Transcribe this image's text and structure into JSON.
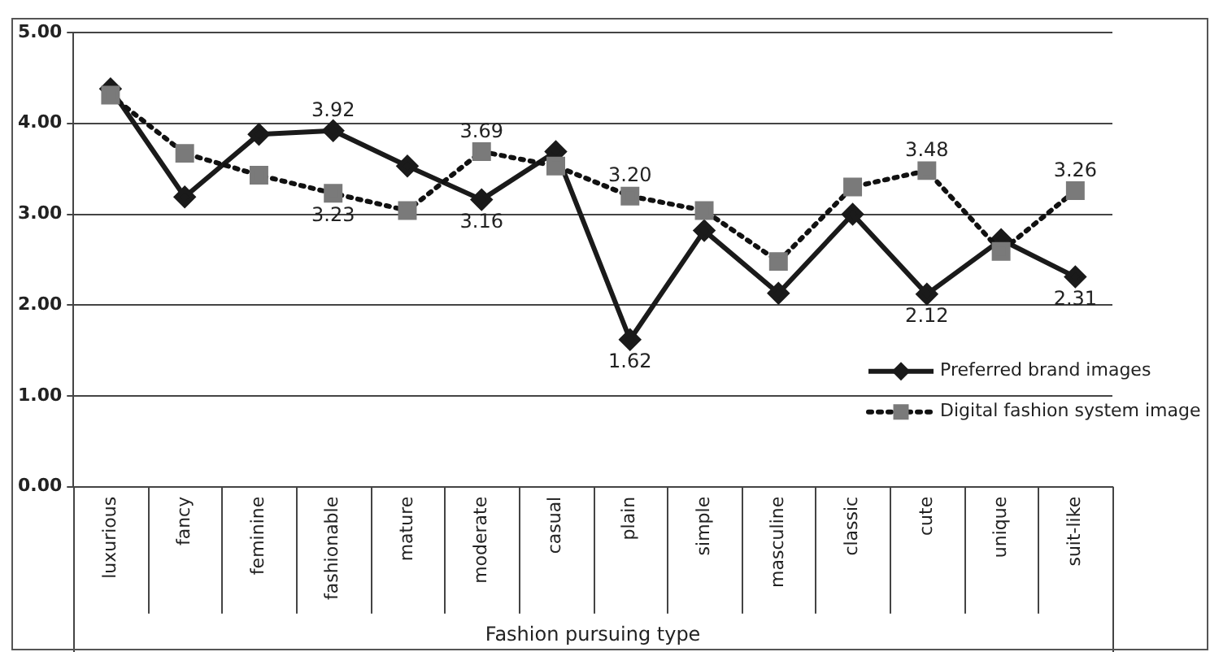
{
  "chart_data": {
    "type": "line",
    "xlabel": "Fashion pursuing type",
    "categories": [
      "luxurious",
      "fancy",
      "feminine",
      "fashionable",
      "mature",
      "moderate",
      "casual",
      "plain",
      "simple",
      "masculine",
      "classic",
      "cute",
      "unique",
      "suit-like"
    ],
    "series": [
      {
        "name": "Preferred brand images",
        "color": "#1a1a1a",
        "marker": "diamond",
        "line_style": "solid",
        "values": [
          4.38,
          3.19,
          3.88,
          3.92,
          3.53,
          3.16,
          3.69,
          1.62,
          2.82,
          2.13,
          3.0,
          2.12,
          2.72,
          2.31
        ],
        "value_labels": [
          null,
          null,
          null,
          "3.92",
          null,
          "3.16",
          null,
          "1.62",
          null,
          null,
          null,
          "2.12",
          null,
          "2.31"
        ]
      },
      {
        "name": "Digital fashion system image",
        "color": "#7a7a7a",
        "marker": "square",
        "line_style": "dotted",
        "values": [
          4.31,
          3.67,
          3.43,
          3.23,
          3.04,
          3.69,
          3.53,
          3.2,
          3.04,
          2.48,
          3.3,
          3.48,
          2.59,
          3.26
        ],
        "value_labels": [
          null,
          null,
          null,
          "3.23",
          null,
          "3.69",
          null,
          "3.20",
          null,
          null,
          null,
          "3.48",
          null,
          "3.26"
        ]
      }
    ],
    "ylim": [
      0,
      5
    ],
    "yticks": [
      {
        "value": 0,
        "label": "0.00"
      },
      {
        "value": 1,
        "label": "1.00"
      },
      {
        "value": 2,
        "label": "2.00"
      },
      {
        "value": 3,
        "label": "3.00"
      },
      {
        "value": 4,
        "label": "4.00"
      },
      {
        "value": 5,
        "label": "5.00"
      }
    ],
    "grid": "y",
    "legend": "right"
  }
}
